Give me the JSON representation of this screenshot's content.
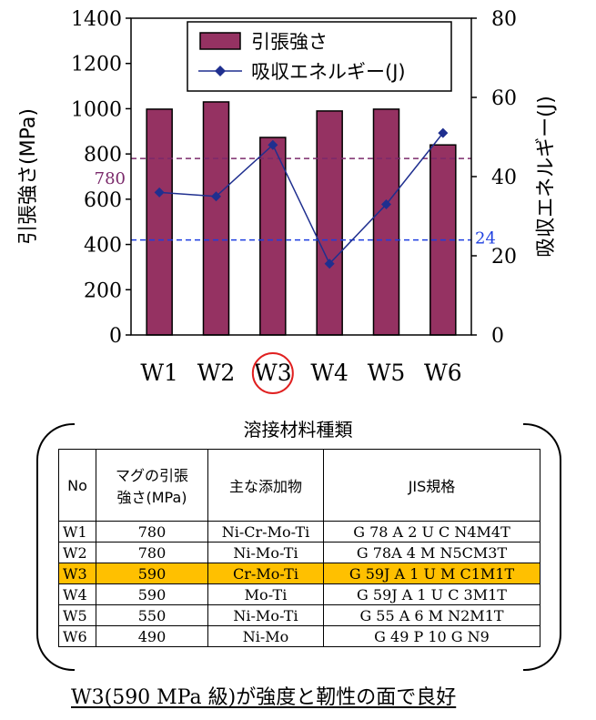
{
  "chart_data": {
    "type": "bar+line",
    "categories": [
      "W1",
      "W2",
      "W3",
      "W4",
      "W5",
      "W6"
    ],
    "series": [
      {
        "name": "引張強さ",
        "type": "bar",
        "axis": "left",
        "values": [
          998,
          1030,
          873,
          990,
          998,
          840
        ],
        "color": "#953262"
      },
      {
        "name": "吸収エネルギー(J)",
        "type": "line",
        "axis": "right",
        "values": [
          36,
          35,
          48,
          18,
          33,
          51
        ],
        "color": "#1f2f8f"
      }
    ],
    "ylabel": "引張強さ(MPa)",
    "y2label": "吸収エネルギー(J)",
    "ylim": [
      0,
      1400
    ],
    "y2lim": [
      0,
      80
    ],
    "yticks": [
      "0",
      "200",
      "400",
      "600",
      "800",
      "1000",
      "1200",
      "1400"
    ],
    "y2ticks": [
      "0",
      "20",
      "40",
      "60",
      "80"
    ],
    "reference_lines": [
      {
        "axis": "left",
        "value": 780,
        "label": "780",
        "color": "#7b2a6b"
      },
      {
        "axis": "right",
        "value": 24,
        "label": "24",
        "color": "#1e3fe0"
      }
    ],
    "highlight_category": "W3",
    "highlight_color": "#e02020",
    "legend_position": "top-right"
  },
  "table": {
    "title": "溶接材料種類",
    "headers": [
      "No",
      "マグの引張\n強さ(MPa)",
      "主な添加物",
      "JIS規格"
    ],
    "rows": [
      {
        "no": "W1",
        "strength": "780",
        "additives": "Ni-Cr-Mo-Ti",
        "jis": "G 78 A 2 U C N4M4T"
      },
      {
        "no": "W2",
        "strength": "780",
        "additives": "Ni-Mo-Ti",
        "jis": "G 78A 4 M N5CM3T"
      },
      {
        "no": "W3",
        "strength": "590",
        "additives": "Cr-Mo-Ti",
        "jis": "G 59J A 1 U M C1M1T"
      },
      {
        "no": "W4",
        "strength": "590",
        "additives": "Mo-Ti",
        "jis": "G 59J A 1 U C 3M1T"
      },
      {
        "no": "W5",
        "strength": "550",
        "additives": "Ni-Mo-Ti",
        "jis": "G 55 A 6 M N2M1T"
      },
      {
        "no": "W6",
        "strength": "490",
        "additives": "Ni-Mo",
        "jis": "G 49 P 10 G N9"
      }
    ],
    "highlight_row": "W3",
    "highlight_color": "#ffc000"
  },
  "summary": "W3(590 MPa 級)が強度と靭性の面で良好"
}
